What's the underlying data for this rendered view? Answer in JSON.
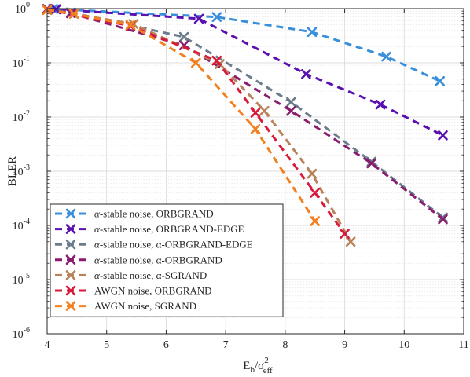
{
  "chart_data": {
    "type": "line",
    "title": "",
    "xlabel": "E",
    "xlabel_sub1": "b",
    "xlabel_mid": "/σ",
    "xlabel_sup": "2",
    "xlabel_sub2": "eff",
    "ylabel": "BLER",
    "xlim": [
      4,
      11
    ],
    "ylim": [
      1e-06,
      1
    ],
    "yscale": "log",
    "grid": true,
    "legend_position": "bottom-left",
    "x_ticks": [
      "4",
      "5",
      "6",
      "7",
      "8",
      "9",
      "10",
      "11"
    ],
    "y_ticks": [
      {
        "base": "10",
        "exp": "0"
      },
      {
        "base": "10",
        "exp": "-1"
      },
      {
        "base": "10",
        "exp": "-2"
      },
      {
        "base": "10",
        "exp": "-3"
      },
      {
        "base": "10",
        "exp": "-4"
      },
      {
        "base": "10",
        "exp": "-5"
      },
      {
        "base": "10",
        "exp": "-6"
      }
    ],
    "series": [
      {
        "prefix": "α",
        "name": "-stable noise, ORBGRAND",
        "color": "#3a8fdc",
        "points": [
          [
            4.1,
            0.99
          ],
          [
            4.15,
            0.98
          ],
          [
            6.85,
            0.7
          ],
          [
            8.45,
            0.37
          ],
          [
            9.7,
            0.13
          ],
          [
            10.6,
            0.046
          ]
        ]
      },
      {
        "prefix": "α",
        "name": "-stable noise, ORBGRAND-EDGE",
        "color": "#5a10b0",
        "points": [
          [
            4.0,
            0.99
          ],
          [
            4.15,
            0.97
          ],
          [
            6.55,
            0.65
          ],
          [
            8.35,
            0.062
          ],
          [
            9.6,
            0.017
          ],
          [
            10.65,
            0.0046
          ]
        ]
      },
      {
        "prefix": "α",
        "name": "-stable noise, α-ORBGRAND-EDGE",
        "color": "#6b7d8c",
        "points": [
          [
            4.0,
            0.98
          ],
          [
            4.4,
            0.85
          ],
          [
            6.3,
            0.3
          ],
          [
            8.1,
            0.019
          ],
          [
            9.45,
            0.0015
          ],
          [
            10.65,
            0.00014
          ]
        ]
      },
      {
        "prefix": "α",
        "name": "-stable noise, α-ORBGRAND",
        "color": "#8a1c6e",
        "points": [
          [
            4.0,
            0.98
          ],
          [
            4.4,
            0.82
          ],
          [
            6.3,
            0.21
          ],
          [
            8.1,
            0.013
          ],
          [
            9.45,
            0.0014
          ],
          [
            10.65,
            0.00013
          ]
        ]
      },
      {
        "prefix": "α",
        "name": "-stable noise, α-SGRAND",
        "color": "#b8825a",
        "points": [
          [
            4.0,
            0.97
          ],
          [
            5.45,
            0.52
          ],
          [
            6.9,
            0.095
          ],
          [
            7.65,
            0.013
          ],
          [
            8.45,
            0.0009
          ],
          [
            9.1,
            5e-05
          ]
        ]
      },
      {
        "prefix": "",
        "name": "AWGN noise, ORBGRAND",
        "color": "#d81b3a",
        "points": [
          [
            4.0,
            0.96
          ],
          [
            5.4,
            0.48
          ],
          [
            6.85,
            0.11
          ],
          [
            7.5,
            0.012
          ],
          [
            8.5,
            0.0004
          ],
          [
            9.0,
            7e-05
          ]
        ]
      },
      {
        "prefix": "",
        "name": "AWGN noise, SGRAND",
        "color": "#f2801f",
        "points": [
          [
            4.0,
            0.94
          ],
          [
            4.45,
            0.8
          ],
          [
            5.4,
            0.5
          ],
          [
            6.5,
            0.1
          ],
          [
            7.5,
            0.006
          ],
          [
            8.5,
            0.00012
          ]
        ]
      }
    ]
  }
}
